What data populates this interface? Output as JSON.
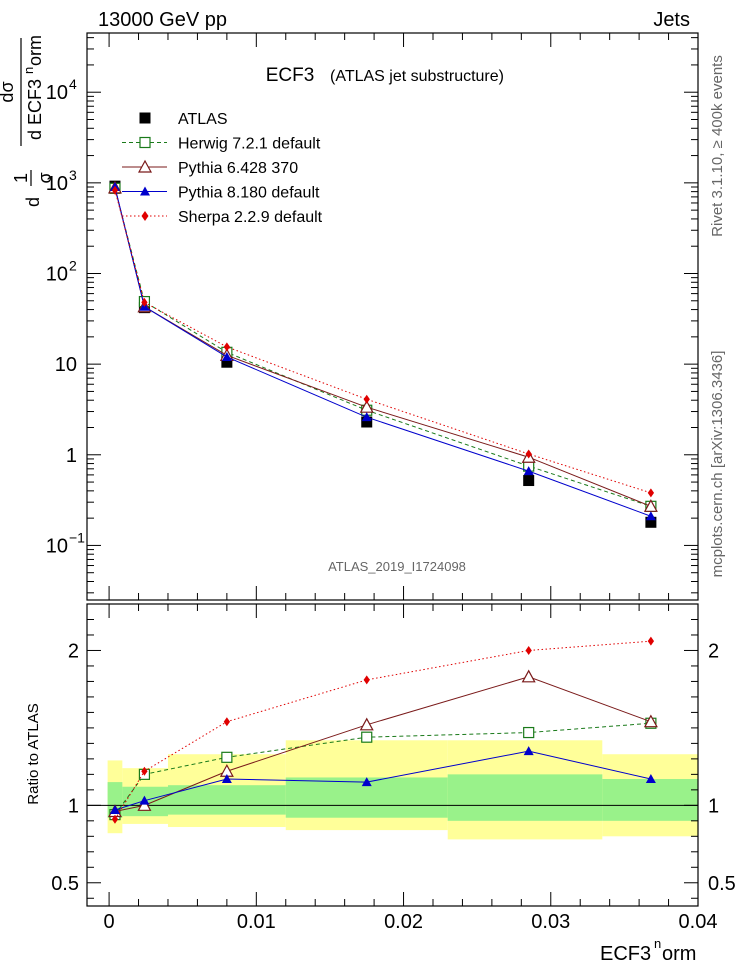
{
  "header": {
    "left": "13000 GeV pp",
    "right": "Jets"
  },
  "side_labels": {
    "rivet": "Rivet 3.1.10, ≥ 400k events",
    "mcplots": "mcplots.cern.ch [arXiv:1306.3436]"
  },
  "chart_data": [
    {
      "type": "scatter",
      "panel": "main",
      "title": "ECF3",
      "subtitle": "(ATLAS jet substructure)",
      "analysis_label": "ATLAS_2019_I1724098",
      "ylabel_parts": {
        "frac1": "1",
        "frac1_den": "σ",
        "dsig": "dσ",
        "dvar": "d ECF3",
        "sup": "n",
        "orm": "orm"
      },
      "yscale": "log",
      "ylim": [
        0.025,
        45000
      ],
      "xlim": [
        -0.0015,
        0.04
      ],
      "yticks": [
        {
          "value": 0.1,
          "base": "10",
          "exp": "−1"
        },
        {
          "value": 1,
          "base": "1",
          "exp": ""
        },
        {
          "value": 10,
          "base": "10",
          "exp": ""
        },
        {
          "value": 100,
          "base": "10",
          "exp": "2"
        },
        {
          "value": 1000,
          "base": "10",
          "exp": "3"
        },
        {
          "value": 10000,
          "base": "10",
          "exp": "4"
        }
      ],
      "legend_position": "top-left",
      "x": [
        0.0004,
        0.0024,
        0.008,
        0.0175,
        0.0285,
        0.0368
      ],
      "series": [
        {
          "name": "ATLAS",
          "marker": "filled-square",
          "color": "#000000",
          "line": "none",
          "values": [
            920,
            42,
            10.5,
            2.3,
            0.52,
            0.18
          ]
        },
        {
          "name": "Herwig 7.2.1 default",
          "marker": "open-square",
          "color": "#1a7a1a",
          "line": "dashed",
          "values": [
            870,
            49,
            13.5,
            3.1,
            0.75,
            0.27
          ]
        },
        {
          "name": "Pythia 6.428 370",
          "marker": "open-triangle",
          "color": "#7a1a1a",
          "line": "solid",
          "values": [
            880,
            43,
            12.5,
            3.35,
            0.94,
            0.27
          ]
        },
        {
          "name": "Pythia 8.180 default",
          "marker": "filled-triangle",
          "color": "#0000cc",
          "line": "solid",
          "values": [
            900,
            43,
            12.0,
            2.6,
            0.66,
            0.21
          ]
        },
        {
          "name": "Sherpa 2.2.9 default",
          "marker": "filled-diamond",
          "color": "#e00000",
          "line": "dotted",
          "values": [
            830,
            48,
            15.5,
            4.1,
            1.02,
            0.38
          ]
        }
      ]
    },
    {
      "type": "scatter",
      "panel": "ratio",
      "ylabel": "Ratio to ATLAS",
      "xlabel_parts": {
        "base": "ECF3",
        "sup": "n",
        "rest": "orm"
      },
      "ylim": [
        0.35,
        2.3
      ],
      "xlim": [
        -0.0015,
        0.04
      ],
      "xticks": [
        {
          "value": 0,
          "label": "0"
        },
        {
          "value": 0.01,
          "label": "0.01"
        },
        {
          "value": 0.02,
          "label": "0.02"
        },
        {
          "value": 0.03,
          "label": "0.03"
        },
        {
          "value": 0.04,
          "label": "0.04"
        }
      ],
      "yticks": [
        {
          "value": 0.5,
          "label": "0.5"
        },
        {
          "value": 1,
          "label": "1"
        },
        {
          "value": 2,
          "label": "2"
        }
      ],
      "uncertainty_bands": [
        {
          "x_low": -0.0001,
          "x_high": 0.0009,
          "stat_low": 0.92,
          "stat_high": 1.15,
          "total_low": 0.82,
          "total_high": 1.29
        },
        {
          "x_low": 0.0009,
          "x_high": 0.004,
          "stat_low": 0.93,
          "stat_high": 1.12,
          "total_low": 0.88,
          "total_high": 1.24
        },
        {
          "x_low": 0.004,
          "x_high": 0.012,
          "stat_low": 0.94,
          "stat_high": 1.13,
          "total_low": 0.86,
          "total_high": 1.33
        },
        {
          "x_low": 0.012,
          "x_high": 0.023,
          "stat_low": 0.92,
          "stat_high": 1.18,
          "total_low": 0.84,
          "total_high": 1.42
        },
        {
          "x_low": 0.023,
          "x_high": 0.0335,
          "stat_low": 0.9,
          "stat_high": 1.2,
          "total_low": 0.78,
          "total_high": 1.42
        },
        {
          "x_low": 0.0335,
          "x_high": 0.04,
          "stat_low": 0.9,
          "stat_high": 1.17,
          "total_low": 0.8,
          "total_high": 1.33
        }
      ],
      "x": [
        0.0004,
        0.0024,
        0.008,
        0.0175,
        0.0285,
        0.0368
      ],
      "series": [
        {
          "name": "Herwig 7.2.1 default",
          "color": "#1a7a1a",
          "line": "dashed",
          "marker": "open-square",
          "values": [
            0.94,
            1.2,
            1.31,
            1.44,
            1.47,
            1.53
          ]
        },
        {
          "name": "Pythia 6.428 370",
          "color": "#7a1a1a",
          "line": "solid",
          "marker": "open-triangle",
          "values": [
            0.96,
            1.0,
            1.22,
            1.52,
            1.83,
            1.54
          ]
        },
        {
          "name": "Pythia 8.180 default",
          "color": "#0000cc",
          "line": "solid",
          "marker": "filled-triangle",
          "values": [
            0.97,
            1.03,
            1.17,
            1.15,
            1.35,
            1.17
          ]
        },
        {
          "name": "Sherpa 2.2.9 default",
          "color": "#e00000",
          "line": "dotted",
          "marker": "filled-diamond",
          "values": [
            0.91,
            1.22,
            1.54,
            1.81,
            2.0,
            2.06
          ]
        }
      ]
    }
  ]
}
